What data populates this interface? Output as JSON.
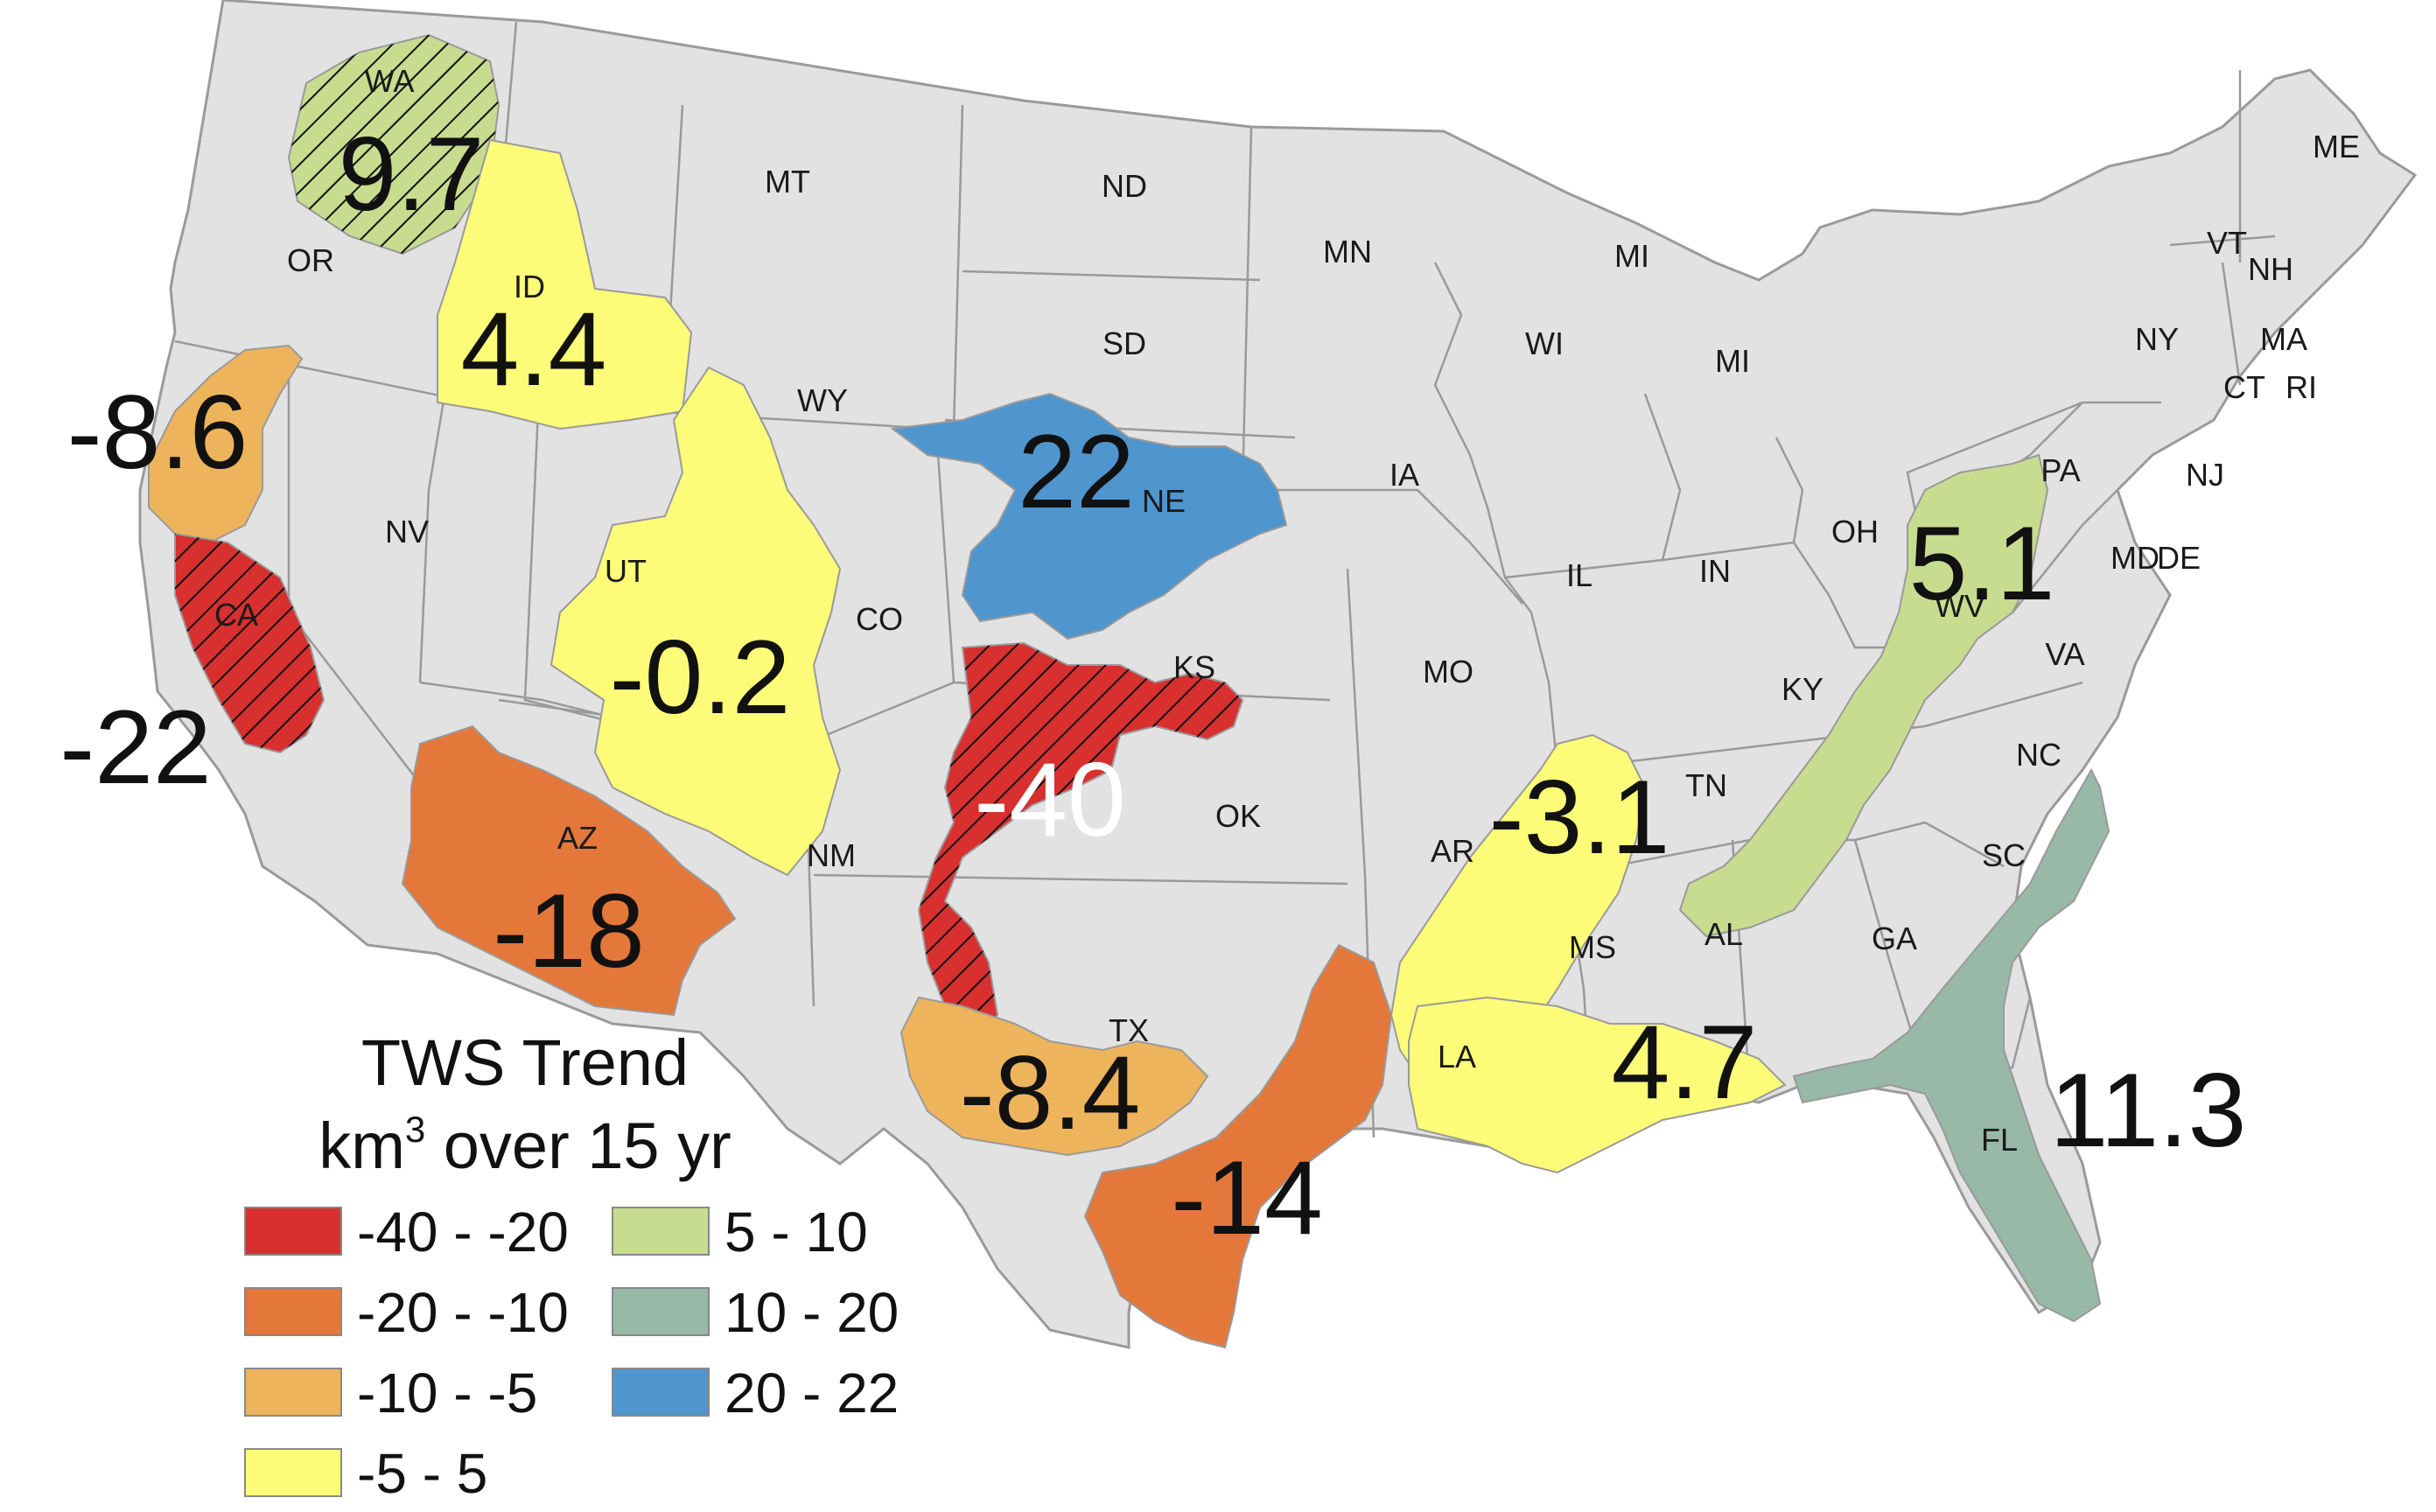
{
  "map": {
    "colors": {
      "background_states": "#e2e2e2",
      "state_border": "#9a9a9a",
      "red": "#d7302f",
      "orange": "#e3783a",
      "light_orange": "#eeb45c",
      "yellow": "#fcfc78",
      "light_green": "#c8dc90",
      "teal": "#98b8a8",
      "blue": "#4f95ce"
    },
    "state_labels": [
      "WA",
      "OR",
      "MT",
      "ND",
      "MN",
      "ME",
      "ID",
      "MI",
      "VT",
      "NH",
      "WI",
      "MI",
      "NY",
      "MA",
      "SD",
      "WY",
      "CT",
      "RI",
      "PA",
      "NJ",
      "NV",
      "NE",
      "IA",
      "OH",
      "MD",
      "DE",
      "UT",
      "IL",
      "IN",
      "WV",
      "CA",
      "CO",
      "KS",
      "MO",
      "VA",
      "KY",
      "NC",
      "TN",
      "OK",
      "AZ",
      "AR",
      "NM",
      "SC",
      "MS",
      "AL",
      "GA",
      "TX",
      "LA",
      "FL"
    ],
    "regions": [
      {
        "id": "wa-region",
        "value": "9.7",
        "color_key": "light_green",
        "hatched": true
      },
      {
        "id": "id-region",
        "value": "4.4",
        "color_key": "yellow",
        "hatched": false
      },
      {
        "id": "ca-north-region",
        "value": "-8.6",
        "color_key": "light_orange",
        "hatched": false
      },
      {
        "id": "ca-central-region",
        "value": "-22",
        "color_key": "red",
        "hatched": true
      },
      {
        "id": "ne-region",
        "value": "22",
        "color_key": "blue",
        "hatched": false
      },
      {
        "id": "ut-wy-region",
        "value": "-0.2",
        "color_key": "yellow",
        "hatched": false
      },
      {
        "id": "ks-ok-region",
        "value": "-40",
        "color_key": "red",
        "hatched": true
      },
      {
        "id": "az-region",
        "value": "-18",
        "color_key": "orange",
        "hatched": false
      },
      {
        "id": "tx-region",
        "value": "-8.4",
        "color_key": "light_orange",
        "hatched": false
      },
      {
        "id": "tx-gulf-region",
        "value": "-14",
        "color_key": "orange",
        "hatched": false
      },
      {
        "id": "ms-embayment-region",
        "value": "-3.1",
        "color_key": "yellow",
        "hatched": false
      },
      {
        "id": "la-region",
        "value": "4.7",
        "color_key": "yellow",
        "hatched": false
      },
      {
        "id": "appalachian-region",
        "value": "5.1",
        "color_key": "light_green",
        "hatched": false
      },
      {
        "id": "fl-region",
        "value": "11.3",
        "color_key": "teal",
        "hatched": false
      }
    ]
  },
  "legend": {
    "title_line1": "TWS Trend",
    "title_line2_prefix": "km",
    "title_line2_sup": "3",
    "title_line2_suffix": " over 15 yr",
    "items": [
      {
        "label": "-40 - -20",
        "color": "#d7302f"
      },
      {
        "label": "-20 - -10",
        "color": "#e3783a"
      },
      {
        "label": "-10 - -5",
        "color": "#eeb45c"
      },
      {
        "label": "-5 - 5",
        "color": "#fcfc78"
      },
      {
        "label": "5 - 10",
        "color": "#c8dc90"
      },
      {
        "label": "10 - 20",
        "color": "#98b8a8"
      },
      {
        "label": "20 - 22",
        "color": "#4f95ce"
      }
    ]
  }
}
